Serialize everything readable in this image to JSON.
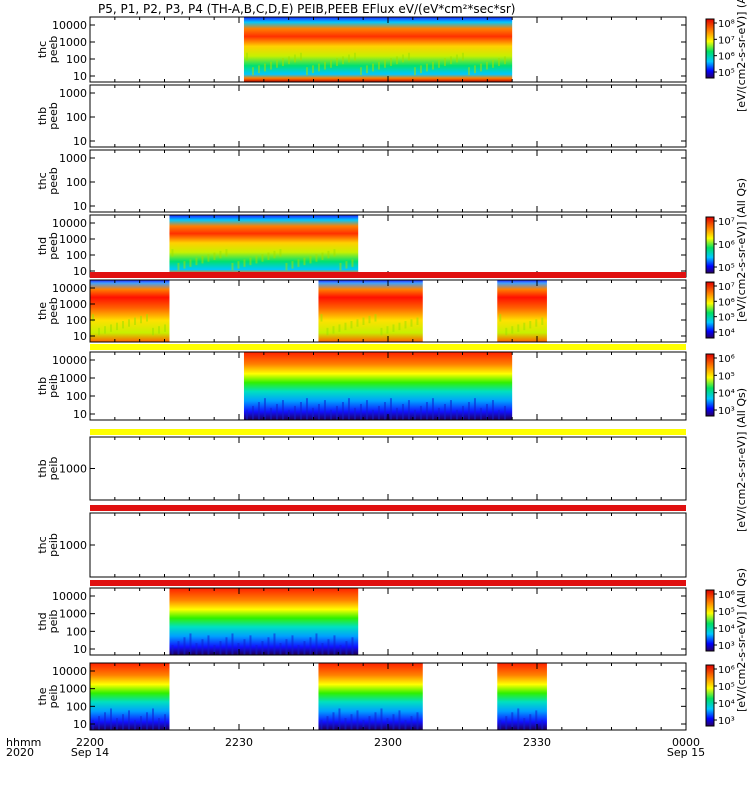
{
  "chart_data": {
    "type": "heatmap",
    "title": "P5, P1, P2, P3, P4 (TH-A,B,C,D,E) PEIB,PEEB EFlux eV/(eV*cm²*sec*sr)",
    "x_axis": {
      "label_rows": [
        "hhmm",
        "2020"
      ],
      "range_minutes": [
        0,
        120
      ],
      "ticks": [
        {
          "minute": 0,
          "time": "2200",
          "date": "Sep 14"
        },
        {
          "minute": 30,
          "time": "2230",
          "date": ""
        },
        {
          "minute": 60,
          "time": "2300",
          "date": ""
        },
        {
          "minute": 90,
          "time": "2330",
          "date": ""
        },
        {
          "minute": 120,
          "time": "0000",
          "date": "Sep 15"
        }
      ]
    },
    "panels": [
      {
        "ylabel": [
          "thc",
          "peeb"
        ],
        "yticks": [
          "10000",
          "1000",
          "100",
          "10"
        ],
        "data_intervals": [
          [
            31,
            85
          ]
        ],
        "colorbar": true,
        "cb_ticks": [
          "10⁸",
          "10⁷",
          "10⁶",
          "10⁵"
        ],
        "cb_label": "[eV/(cm2-s-sr-eV)] (All Qs)",
        "stripe": ""
      },
      {
        "ylabel": [
          "thb",
          "peeb"
        ],
        "yticks": [
          "1000",
          "100",
          "10"
        ],
        "data_intervals": [],
        "colorbar": false,
        "cb_ticks": [],
        "cb_label": "",
        "stripe": ""
      },
      {
        "ylabel": [
          "thc",
          "peeb"
        ],
        "yticks": [
          "1000",
          "100",
          "10"
        ],
        "data_intervals": [],
        "colorbar": false,
        "cb_ticks": [],
        "cb_label": "",
        "stripe": ""
      },
      {
        "ylabel": [
          "thd",
          "peeb"
        ],
        "yticks": [
          "10000",
          "1000",
          "100",
          "10"
        ],
        "data_intervals": [
          [
            16,
            54
          ]
        ],
        "colorbar": true,
        "cb_ticks": [
          "10⁷",
          "10⁶",
          "10⁵"
        ],
        "cb_label": "[eV/(cm2-s-sr-eV)] (All Qs)",
        "stripe": ""
      },
      {
        "ylabel": [
          "the",
          "peeb"
        ],
        "yticks": [
          "10000",
          "1000",
          "100",
          "10"
        ],
        "data_intervals": [
          [
            0,
            16
          ],
          [
            46,
            67
          ],
          [
            82,
            92
          ]
        ],
        "colorbar": true,
        "cb_ticks": [
          "10⁷",
          "10⁶",
          "10⁵",
          "10⁴"
        ],
        "cb_label": "[eV/(cm2-s-sr-eV)] (All Qs)",
        "stripe": "red"
      },
      {
        "ylabel": [
          "thb",
          "peib"
        ],
        "yticks": [
          "10000",
          "1000",
          "100",
          "10"
        ],
        "data_intervals": [
          [
            31,
            85
          ]
        ],
        "colorbar": true,
        "cb_ticks": [
          "10⁶",
          "10⁵",
          "10⁴",
          "10³"
        ],
        "cb_label": "[eV/(cm2-s-sr-eV)] (All Qs)",
        "stripe": "yellow"
      },
      {
        "ylabel": [
          "thb",
          "peib"
        ],
        "yticks": [
          "1000"
        ],
        "data_intervals": [],
        "colorbar": false,
        "cb_ticks": [],
        "cb_label": "",
        "stripe": "yellow"
      },
      {
        "ylabel": [
          "thc",
          "peib"
        ],
        "yticks": [
          "1000"
        ],
        "data_intervals": [],
        "colorbar": false,
        "cb_ticks": [],
        "cb_label": "",
        "stripe": "red"
      },
      {
        "ylabel": [
          "thd",
          "peib"
        ],
        "yticks": [
          "10000",
          "1000",
          "100",
          "10"
        ],
        "data_intervals": [
          [
            16,
            54
          ]
        ],
        "colorbar": true,
        "cb_ticks": [
          "10⁶",
          "10⁵",
          "10⁴",
          "10³"
        ],
        "cb_label": "[eV/(cm2-s-sr-eV)] (All Qs)",
        "stripe": "red"
      },
      {
        "ylabel": [
          "the",
          "peib"
        ],
        "yticks": [
          "10000",
          "1000",
          "100",
          "10"
        ],
        "data_intervals": [
          [
            0,
            16
          ],
          [
            46,
            67
          ],
          [
            82,
            92
          ]
        ],
        "colorbar": true,
        "cb_ticks": [
          "10⁶",
          "10⁵",
          "10⁴",
          "10³"
        ],
        "cb_label": "[eV/(cm2-s-sr-eV)] (All Qs)",
        "stripe": ""
      }
    ],
    "colors": {
      "red": "#e01010",
      "yellow": "#ffff00",
      "axis": "#000000"
    }
  }
}
